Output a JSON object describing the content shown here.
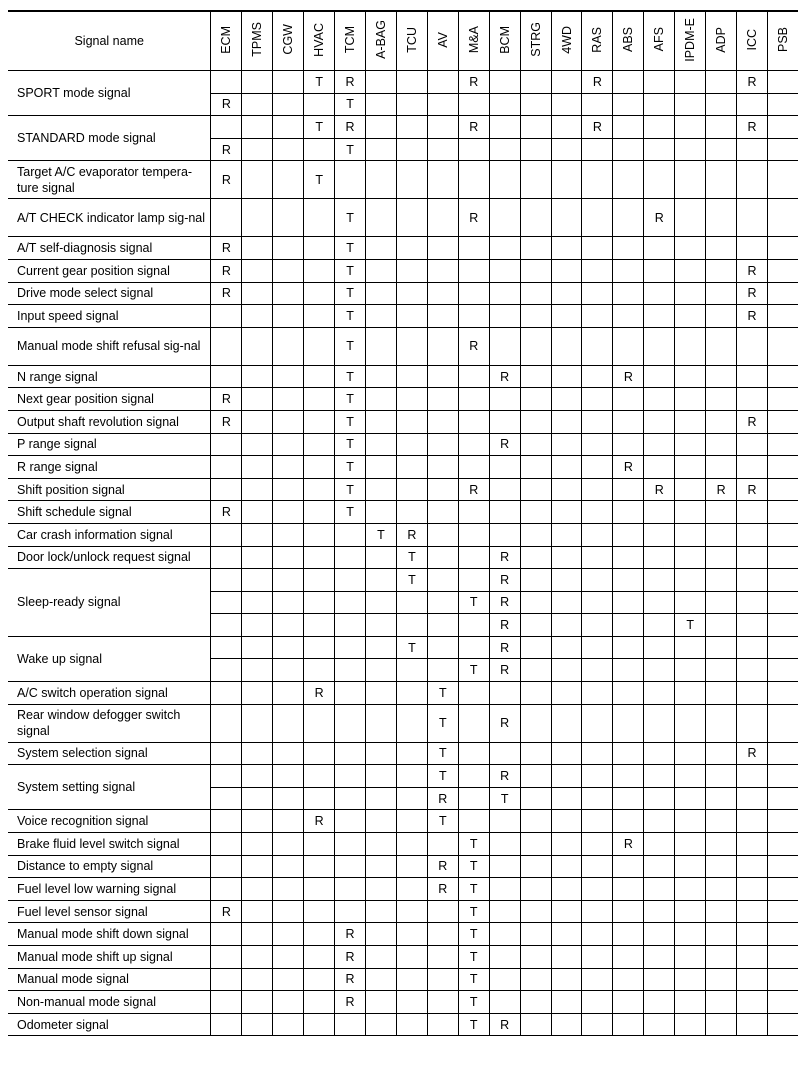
{
  "header": {
    "signal_name": "Signal name"
  },
  "columns": [
    "ECM",
    "TPMS",
    "CGW",
    "HVAC",
    "TCM",
    "A-BAG",
    "TCU",
    "AV",
    "M&A",
    "BCM",
    "STRG",
    "4WD",
    "RAS",
    "ABS",
    "AFS",
    "IPDM-E",
    "ADP",
    "ICC",
    "PSB"
  ],
  "rows": [
    {
      "name": "SPORT mode signal",
      "sub": [
        {
          "HVAC": "T",
          "TCM": "R",
          "M&A": "R",
          "RAS": "R",
          "ICC": "R"
        },
        {
          "ECM": "R",
          "TCM": "T"
        }
      ]
    },
    {
      "name": "STANDARD mode signal",
      "sub": [
        {
          "HVAC": "T",
          "TCM": "R",
          "M&A": "R",
          "RAS": "R",
          "ICC": "R"
        },
        {
          "ECM": "R",
          "TCM": "T"
        }
      ]
    },
    {
      "name": "Target A/C evaporator tempera-ture signal",
      "tall": true,
      "sub": [
        {
          "ECM": "R",
          "HVAC": "T"
        }
      ]
    },
    {
      "name": "A/T CHECK indicator lamp sig-nal",
      "tall": true,
      "sub": [
        {
          "TCM": "T",
          "M&A": "R",
          "AFS": "R"
        }
      ]
    },
    {
      "name": "A/T self-diagnosis signal",
      "sub": [
        {
          "ECM": "R",
          "TCM": "T"
        }
      ]
    },
    {
      "name": "Current gear position signal",
      "sub": [
        {
          "ECM": "R",
          "TCM": "T",
          "ICC": "R"
        }
      ]
    },
    {
      "name": "Drive mode select signal",
      "sub": [
        {
          "ECM": "R",
          "TCM": "T",
          "ICC": "R"
        }
      ]
    },
    {
      "name": "Input speed signal",
      "sub": [
        {
          "TCM": "T",
          "ICC": "R"
        }
      ]
    },
    {
      "name": "Manual mode shift refusal sig-nal",
      "tall": true,
      "sub": [
        {
          "TCM": "T",
          "M&A": "R"
        }
      ]
    },
    {
      "name": "N range signal",
      "sub": [
        {
          "TCM": "T",
          "BCM": "R",
          "ABS": "R"
        }
      ]
    },
    {
      "name": "Next gear position signal",
      "sub": [
        {
          "ECM": "R",
          "TCM": "T"
        }
      ]
    },
    {
      "name": "Output shaft revolution signal",
      "sub": [
        {
          "ECM": "R",
          "TCM": "T",
          "ICC": "R"
        }
      ]
    },
    {
      "name": "P range signal",
      "sub": [
        {
          "TCM": "T",
          "BCM": "R"
        }
      ]
    },
    {
      "name": "R range signal",
      "sub": [
        {
          "TCM": "T",
          "ABS": "R"
        }
      ]
    },
    {
      "name": "Shift position signal",
      "sub": [
        {
          "TCM": "T",
          "M&A": "R",
          "AFS": "R",
          "ADP": "R",
          "ICC": "R"
        }
      ]
    },
    {
      "name": "Shift schedule signal",
      "sub": [
        {
          "ECM": "R",
          "TCM": "T"
        }
      ]
    },
    {
      "name": "Car crash information signal",
      "sub": [
        {
          "A-BAG": "T",
          "TCU": "R"
        }
      ]
    },
    {
      "name": "Door lock/unlock request signal",
      "sub": [
        {
          "TCU": "T",
          "BCM": "R"
        }
      ]
    },
    {
      "name": "Sleep-ready signal",
      "sub": [
        {
          "TCU": "T",
          "BCM": "R"
        },
        {
          "M&A": "T",
          "BCM": "R"
        },
        {
          "BCM": "R",
          "IPDM-E": "T"
        }
      ]
    },
    {
      "name": "Wake up signal",
      "sub": [
        {
          "TCU": "T",
          "BCM": "R"
        },
        {
          "M&A": "T",
          "BCM": "R"
        }
      ]
    },
    {
      "name": "A/C switch operation signal",
      "sub": [
        {
          "HVAC": "R",
          "AV": "T"
        }
      ]
    },
    {
      "name": "Rear window defogger switch signal",
      "tall": true,
      "sub": [
        {
          "AV": "T",
          "BCM": "R"
        }
      ]
    },
    {
      "name": "System selection signal",
      "sub": [
        {
          "AV": "T",
          "ICC": "R"
        }
      ]
    },
    {
      "name": "System setting signal",
      "sub": [
        {
          "AV": "T",
          "BCM": "R"
        },
        {
          "AV": "R",
          "BCM": "T"
        }
      ]
    },
    {
      "name": "Voice recognition signal",
      "sub": [
        {
          "HVAC": "R",
          "AV": "T"
        }
      ]
    },
    {
      "name": "Brake fluid level switch signal",
      "sub": [
        {
          "M&A": "T",
          "ABS": "R"
        }
      ]
    },
    {
      "name": "Distance to empty signal",
      "sub": [
        {
          "AV": "R",
          "M&A": "T"
        }
      ]
    },
    {
      "name": "Fuel level low warning signal",
      "sub": [
        {
          "AV": "R",
          "M&A": "T"
        }
      ]
    },
    {
      "name": "Fuel level sensor signal",
      "sub": [
        {
          "ECM": "R",
          "M&A": "T"
        }
      ]
    },
    {
      "name": "Manual mode shift down signal",
      "sub": [
        {
          "TCM": "R",
          "M&A": "T"
        }
      ]
    },
    {
      "name": "Manual mode shift up signal",
      "sub": [
        {
          "TCM": "R",
          "M&A": "T"
        }
      ]
    },
    {
      "name": "Manual mode signal",
      "sub": [
        {
          "TCM": "R",
          "M&A": "T"
        }
      ]
    },
    {
      "name": "Non-manual mode signal",
      "sub": [
        {
          "TCM": "R",
          "M&A": "T"
        }
      ]
    },
    {
      "name": "Odometer signal",
      "sub": [
        {
          "M&A": "T",
          "BCM": "R"
        }
      ]
    }
  ]
}
